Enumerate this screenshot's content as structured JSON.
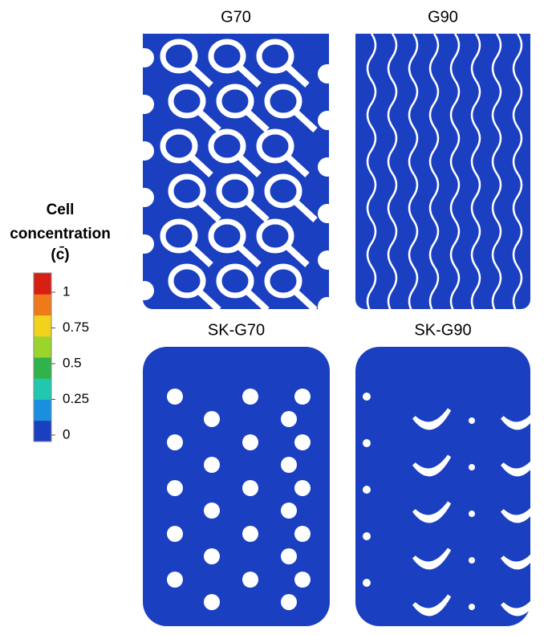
{
  "colorbar": {
    "title_lines": [
      "Cell",
      "concentration",
      "(c̄)"
    ],
    "ticks": [
      1,
      0.75,
      0.5,
      0.25,
      0
    ],
    "range": [
      0,
      1
    ],
    "colors": [
      "#1a3fc0",
      "#1a8fe0",
      "#22c7b0",
      "#2fb34a",
      "#9bd42a",
      "#f2d21b",
      "#f07a1a",
      "#d71f14"
    ]
  },
  "panels": [
    {
      "title": "G70",
      "pattern": "g70"
    },
    {
      "title": "G90",
      "pattern": "g90"
    },
    {
      "title": "SK-G70",
      "pattern": "skg70"
    },
    {
      "title": "SK-G90",
      "pattern": "skg90"
    }
  ]
}
